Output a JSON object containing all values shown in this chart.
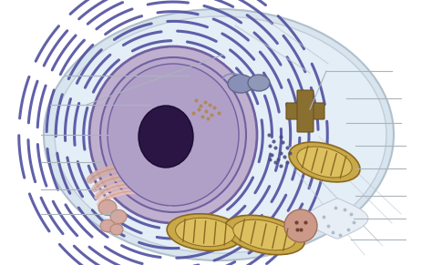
{
  "bg_color": "#ffffff",
  "cell_outer_color": "#d8e4ee",
  "cell_outer_edge": "#b0c0cc",
  "cell_inner_color": "#e4eef7",
  "cell_inner_edge": "#c0ccd8",
  "nucleus_fill": "#c0b0d0",
  "nucleus_edge": "#7060a0",
  "nucleolus_fill": "#2a1545",
  "nucleolus_edge": "#1a0a30",
  "er_color": "#5050a0",
  "golgi_color": "#d4a8a0",
  "golgi_edge": "#b08878",
  "mito_outer": "#c8a848",
  "mito_inner": "#dcc060",
  "mito_edge": "#8a6820",
  "centrosome_color": "#8a7030",
  "vesicle_color": "#8890b8",
  "vesicle_edge": "#606888",
  "line_color": "#aab4bc",
  "ribo_color": "#4a4a80",
  "brown_dot_color": "#b08850",
  "filament_color": "#b8c4cc"
}
